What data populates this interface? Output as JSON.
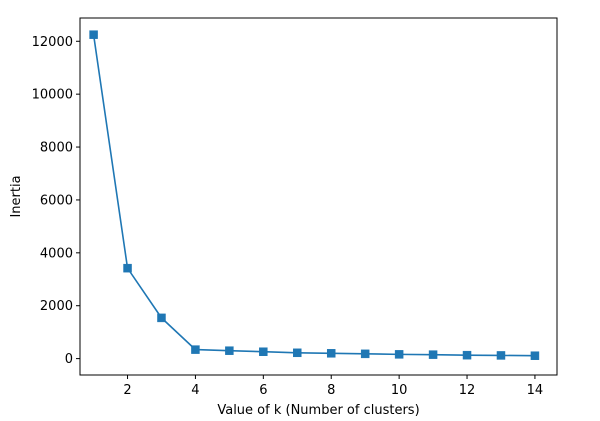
{
  "chart_data": {
    "type": "line",
    "title": "",
    "xlabel": "Value of k (Number of clusters)",
    "ylabel": "Inertia",
    "xlim": [
      0.6,
      14.65
    ],
    "ylim": [
      -620,
      12880
    ],
    "x_ticks": [
      2,
      4,
      6,
      8,
      10,
      12,
      14
    ],
    "y_ticks": [
      0,
      2000,
      4000,
      6000,
      8000,
      10000,
      12000
    ],
    "grid": false,
    "legend": "none",
    "marker": "square",
    "colors": {
      "line": "#1f77b4"
    },
    "series": [
      {
        "x": [
          1,
          2,
          3,
          4,
          5,
          6,
          7,
          8,
          9,
          10,
          11,
          12,
          13,
          14
        ],
        "values": [
          12250,
          3420,
          1540,
          340,
          300,
          260,
          220,
          200,
          180,
          160,
          150,
          130,
          120,
          110
        ]
      }
    ]
  }
}
